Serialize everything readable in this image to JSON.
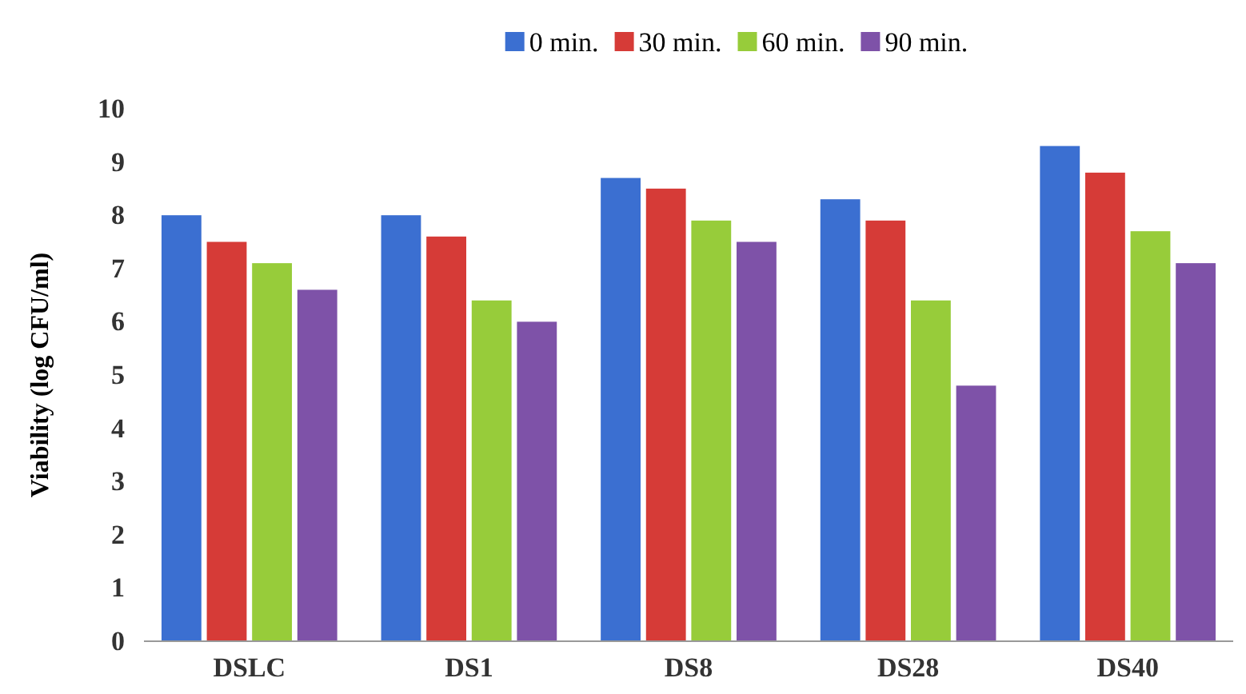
{
  "chart_data": {
    "type": "bar",
    "ylabel": "Viability  (log CFU/ml)",
    "categories": [
      "DSLC",
      "DS1",
      "DS8",
      "DS28",
      "DS40"
    ],
    "series": [
      {
        "name": "0 min.",
        "color": "#3b6fd1",
        "values": [
          8.0,
          8.0,
          8.7,
          8.3,
          9.3
        ]
      },
      {
        "name": "30 min.",
        "color": "#d63b37",
        "values": [
          7.5,
          7.6,
          8.5,
          7.9,
          8.8
        ]
      },
      {
        "name": "60 min.",
        "color": "#97cc3a",
        "values": [
          7.1,
          6.4,
          7.9,
          6.4,
          7.7
        ]
      },
      {
        "name": "90 min.",
        "color": "#7e52a8",
        "values": [
          6.6,
          6.0,
          7.5,
          4.8,
          7.1
        ]
      }
    ],
    "ylim": [
      0,
      10
    ],
    "yticks": [
      0,
      1,
      2,
      3,
      4,
      5,
      6,
      7,
      8,
      9,
      10
    ],
    "legend": "top",
    "grid": false
  }
}
